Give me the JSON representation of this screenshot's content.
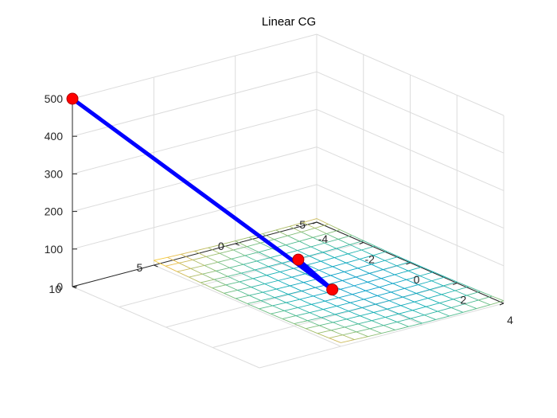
{
  "chart_data": {
    "type": "3d-surface-with-path",
    "title": "Linear CG",
    "xlabel": "",
    "ylabel": "",
    "zlabel": "",
    "axes": {
      "x": {
        "range": [
          -4,
          4
        ],
        "ticks": [
          "-4",
          "-2",
          "0",
          "2",
          "4"
        ]
      },
      "y": {
        "range": [
          -5,
          10
        ],
        "ticks": [
          "-5",
          "0",
          "5",
          "10"
        ]
      },
      "z": {
        "range": [
          0,
          500
        ],
        "ticks": [
          "0",
          "100",
          "200",
          "300",
          "400",
          "500"
        ]
      },
      "grid": true
    },
    "surface": {
      "description": "quadratic objective mesh (parula colormap)",
      "x_range": [
        -4,
        4
      ],
      "y_range": [
        -5,
        5
      ],
      "z_range_approx": [
        0,
        15
      ]
    },
    "path": {
      "color": "#0000ff",
      "marker_color": "#ff0000",
      "points": [
        {
          "x": -4,
          "y": 10,
          "z": 500
        },
        {
          "x": 0.5,
          "y": 0.5,
          "z": 5
        },
        {
          "x": -2,
          "y": -1,
          "z": 0
        }
      ]
    }
  },
  "colors": {
    "axis": "#262626",
    "grid": "#dcdcdc",
    "path": "#0000ff",
    "marker": "#ff0000"
  }
}
